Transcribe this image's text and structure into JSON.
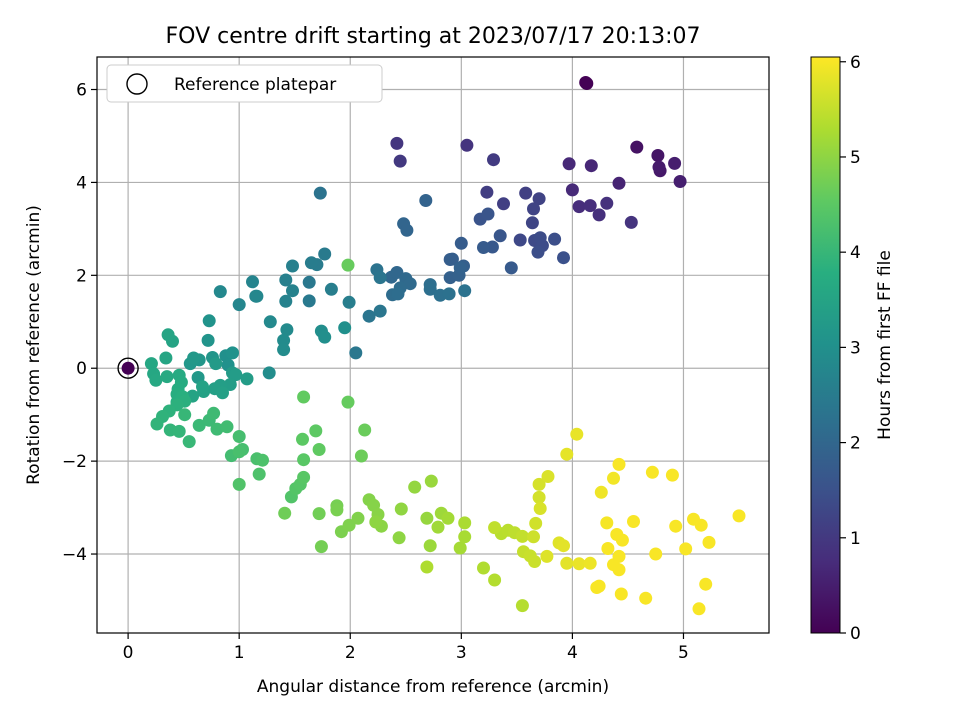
{
  "chart_data": {
    "type": "scatter",
    "title": "FOV centre drift starting at 2023/07/17 20:13:07",
    "xlabel": "Angular distance from reference (arcmin)",
    "ylabel": "Rotation from reference (arcmin)",
    "xlim": [
      -0.28,
      5.77
    ],
    "ylim": [
      -5.7,
      6.7
    ],
    "xticks": [
      0,
      1,
      2,
      3,
      4,
      5
    ],
    "yticks": [
      -4,
      -2,
      0,
      2,
      4,
      6
    ],
    "grid": true,
    "legend": {
      "position": "top-left",
      "entries": [
        "Reference platepar"
      ]
    },
    "colorbar": {
      "label": "Hours from first FF file",
      "colormap": "viridis",
      "range": [
        0,
        6.05
      ],
      "ticks": [
        0,
        1,
        2,
        3,
        4,
        5,
        6
      ]
    },
    "reference_point": {
      "x": 0,
      "y": 0
    },
    "points": [
      [
        4.13,
        6.13,
        0.0
      ],
      [
        4.12,
        6.15,
        0.02
      ],
      [
        4.58,
        4.76,
        0.3
      ],
      [
        4.77,
        4.58,
        0.35
      ],
      [
        4.79,
        4.25,
        0.4
      ],
      [
        4.78,
        4.33,
        0.45
      ],
      [
        4.92,
        4.41,
        0.5
      ],
      [
        4.97,
        4.02,
        0.52
      ],
      [
        4.42,
        3.98,
        0.6
      ],
      [
        4.17,
        4.36,
        0.65
      ],
      [
        3.97,
        4.4,
        0.68
      ],
      [
        4.0,
        3.84,
        0.7
      ],
      [
        4.06,
        3.48,
        0.75
      ],
      [
        4.16,
        3.5,
        0.78
      ],
      [
        4.24,
        3.3,
        0.82
      ],
      [
        4.31,
        3.55,
        0.85
      ],
      [
        4.53,
        3.14,
        0.9
      ],
      [
        3.05,
        4.8,
        0.9
      ],
      [
        2.42,
        4.84,
        0.95
      ],
      [
        2.45,
        4.46,
        1.0
      ],
      [
        3.29,
        4.49,
        1.05
      ],
      [
        3.23,
        3.79,
        1.1
      ],
      [
        3.38,
        3.54,
        1.12
      ],
      [
        3.58,
        3.77,
        1.15
      ],
      [
        3.7,
        3.65,
        1.2
      ],
      [
        3.65,
        3.43,
        1.22
      ],
      [
        3.64,
        3.13,
        1.25
      ],
      [
        3.53,
        2.76,
        1.3
      ],
      [
        3.66,
        2.75,
        1.35
      ],
      [
        3.71,
        2.81,
        1.38
      ],
      [
        3.73,
        2.64,
        1.4
      ],
      [
        3.69,
        2.5,
        1.43
      ],
      [
        3.84,
        2.78,
        1.45
      ],
      [
        3.92,
        2.38,
        1.5
      ],
      [
        3.17,
        3.21,
        1.55
      ],
      [
        3.24,
        3.32,
        1.58
      ],
      [
        3.35,
        2.85,
        1.6
      ],
      [
        3.28,
        2.61,
        1.65
      ],
      [
        3.45,
        2.16,
        1.7
      ],
      [
        3.2,
        2.6,
        1.72
      ],
      [
        3.0,
        2.69,
        1.75
      ],
      [
        2.9,
        2.34,
        1.78
      ],
      [
        2.92,
        2.35,
        1.8
      ],
      [
        3.02,
        2.2,
        1.82
      ],
      [
        2.9,
        1.95,
        1.85
      ],
      [
        2.98,
        2.0,
        1.87
      ],
      [
        2.99,
        2.16,
        1.9
      ],
      [
        2.68,
        3.61,
        1.92
      ],
      [
        2.48,
        3.11,
        1.95
      ],
      [
        2.51,
        2.97,
        1.97
      ],
      [
        2.37,
        1.96,
        2.0
      ],
      [
        2.42,
        2.06,
        2.02
      ],
      [
        2.5,
        1.93,
        2.05
      ],
      [
        2.54,
        1.82,
        2.07
      ],
      [
        2.45,
        1.73,
        2.1
      ],
      [
        2.38,
        1.58,
        2.12
      ],
      [
        2.43,
        1.6,
        2.15
      ],
      [
        2.72,
        1.8,
        2.17
      ],
      [
        2.72,
        1.7,
        2.2
      ],
      [
        2.81,
        1.57,
        2.22
      ],
      [
        2.89,
        1.6,
        2.25
      ],
      [
        3.03,
        1.67,
        2.27
      ],
      [
        1.73,
        3.77,
        2.3
      ],
      [
        2.24,
        2.12,
        2.3
      ],
      [
        2.27,
        1.95,
        2.33
      ],
      [
        2.17,
        1.12,
        2.35
      ],
      [
        2.27,
        1.23,
        2.37
      ],
      [
        2.05,
        0.33,
        2.4
      ],
      [
        1.63,
        1.85,
        2.42
      ],
      [
        1.63,
        1.45,
        2.45
      ],
      [
        1.77,
        2.46,
        2.47
      ],
      [
        1.7,
        2.23,
        2.5
      ],
      [
        1.65,
        2.27,
        2.52
      ],
      [
        1.83,
        1.7,
        2.55
      ],
      [
        1.99,
        1.42,
        2.57
      ],
      [
        1.48,
        2.2,
        2.6
      ],
      [
        1.42,
        1.9,
        2.62
      ],
      [
        1.48,
        1.67,
        2.65
      ],
      [
        1.42,
        1.44,
        2.67
      ],
      [
        1.15,
        1.55,
        2.7
      ],
      [
        1.12,
        1.86,
        2.72
      ],
      [
        1.0,
        1.37,
        2.75
      ],
      [
        1.16,
        1.55,
        2.77
      ],
      [
        0.83,
        1.65,
        2.8
      ],
      [
        1.28,
        1.0,
        2.82
      ],
      [
        1.43,
        0.83,
        2.85
      ],
      [
        1.4,
        0.6,
        2.87
      ],
      [
        1.4,
        0.4,
        2.9
      ],
      [
        1.27,
        -0.1,
        2.92
      ],
      [
        1.74,
        0.8,
        2.95
      ],
      [
        1.77,
        0.67,
        2.97
      ],
      [
        1.95,
        0.87,
        3.0
      ],
      [
        0.88,
        0.27,
        3.0
      ],
      [
        0.9,
        0.07,
        3.02
      ],
      [
        0.94,
        0.33,
        3.05
      ],
      [
        0.73,
        1.02,
        3.07
      ],
      [
        0.72,
        0.6,
        3.1
      ],
      [
        0.76,
        0.23,
        3.12
      ],
      [
        0.64,
        0.18,
        3.15
      ],
      [
        0.56,
        0.1,
        3.17
      ],
      [
        0.59,
        0.22,
        3.2
      ],
      [
        0.63,
        -0.2,
        3.22
      ],
      [
        0.79,
        0.1,
        3.25
      ],
      [
        0.94,
        -0.1,
        3.27
      ],
      [
        0.97,
        -0.14,
        3.3
      ],
      [
        1.07,
        -0.23,
        3.32
      ],
      [
        0.92,
        -0.35,
        3.35
      ],
      [
        0.83,
        -0.37,
        3.37
      ],
      [
        0.78,
        -0.44,
        3.4
      ],
      [
        0.85,
        -0.53,
        3.42
      ],
      [
        0.68,
        -0.5,
        3.45
      ],
      [
        0.67,
        -0.4,
        3.47
      ],
      [
        0.58,
        -0.6,
        3.5
      ],
      [
        0.4,
        0.58,
        3.5
      ],
      [
        0.36,
        0.72,
        3.52
      ],
      [
        0.34,
        0.22,
        3.55
      ],
      [
        0.21,
        0.1,
        3.57
      ],
      [
        0.23,
        -0.12,
        3.6
      ],
      [
        0.25,
        -0.26,
        3.62
      ],
      [
        0.35,
        -0.18,
        3.65
      ],
      [
        0.46,
        -0.15,
        3.67
      ],
      [
        0.48,
        -0.3,
        3.7
      ],
      [
        0.45,
        -0.45,
        3.72
      ],
      [
        0.44,
        -0.56,
        3.75
      ],
      [
        0.44,
        -0.73,
        3.77
      ],
      [
        0.49,
        -0.61,
        3.8
      ],
      [
        0.51,
        -0.71,
        3.82
      ],
      [
        0.44,
        -0.79,
        3.85
      ],
      [
        0.37,
        -0.92,
        3.87
      ],
      [
        0.31,
        -1.04,
        3.9
      ],
      [
        0.26,
        -1.2,
        3.92
      ],
      [
        0.38,
        -1.33,
        3.95
      ],
      [
        0.46,
        -1.36,
        3.97
      ],
      [
        0.51,
        -1.0,
        4.0
      ],
      [
        0.55,
        -1.58,
        4.02
      ],
      [
        0.64,
        -1.23,
        4.05
      ],
      [
        0.73,
        -1.12,
        4.07
      ],
      [
        0.77,
        -0.97,
        4.1
      ],
      [
        0.8,
        -1.31,
        4.12
      ],
      [
        0.89,
        -1.26,
        4.15
      ],
      [
        0.93,
        -1.88,
        4.17
      ],
      [
        1.0,
        -1.47,
        4.2
      ],
      [
        1.03,
        -1.75,
        4.22
      ],
      [
        1.0,
        -1.8,
        4.25
      ],
      [
        1.16,
        -1.95,
        4.27
      ],
      [
        1.21,
        -1.98,
        4.3
      ],
      [
        1.18,
        -2.28,
        4.32
      ],
      [
        1.0,
        -2.5,
        4.35
      ],
      [
        1.47,
        -2.77,
        4.37
      ],
      [
        1.51,
        -2.59,
        4.4
      ],
      [
        1.55,
        -2.5,
        4.42
      ],
      [
        1.58,
        -2.35,
        4.45
      ],
      [
        1.58,
        -1.97,
        4.47
      ],
      [
        1.57,
        -1.53,
        4.5
      ],
      [
        1.69,
        -1.35,
        4.52
      ],
      [
        1.72,
        -1.75,
        4.55
      ],
      [
        1.58,
        -0.62,
        4.57
      ],
      [
        1.98,
        -0.73,
        4.6
      ],
      [
        1.98,
        2.22,
        4.62
      ],
      [
        2.13,
        -1.33,
        4.65
      ],
      [
        2.1,
        -1.89,
        4.67
      ],
      [
        1.41,
        -3.12,
        4.7
      ],
      [
        1.72,
        -3.13,
        4.72
      ],
      [
        1.74,
        -3.84,
        4.75
      ],
      [
        1.88,
        -2.96,
        4.77
      ],
      [
        1.88,
        -3.05,
        4.8
      ],
      [
        1.92,
        -3.52,
        4.82
      ],
      [
        1.99,
        -3.38,
        4.85
      ],
      [
        2.07,
        -3.23,
        4.87
      ],
      [
        2.17,
        -2.83,
        4.9
      ],
      [
        2.21,
        -2.95,
        4.92
      ],
      [
        2.25,
        -3.15,
        4.95
      ],
      [
        2.28,
        -3.4,
        4.97
      ],
      [
        2.23,
        -3.31,
        5.0
      ],
      [
        2.44,
        -3.65,
        5.0
      ],
      [
        2.46,
        -3.03,
        5.02
      ],
      [
        2.58,
        -2.56,
        5.05
      ],
      [
        2.69,
        -3.23,
        5.07
      ],
      [
        2.73,
        -2.43,
        5.1
      ],
      [
        2.72,
        -3.82,
        5.12
      ],
      [
        2.82,
        -3.12,
        5.15
      ],
      [
        2.79,
        -3.42,
        5.17
      ],
      [
        2.88,
        -3.23,
        5.2
      ],
      [
        2.99,
        -3.87,
        5.22
      ],
      [
        3.03,
        -3.63,
        5.25
      ],
      [
        3.03,
        -3.33,
        5.27
      ],
      [
        2.69,
        -4.28,
        5.3
      ],
      [
        3.2,
        -4.3,
        5.32
      ],
      [
        3.3,
        -4.56,
        5.35
      ],
      [
        3.55,
        -5.11,
        5.37
      ],
      [
        3.36,
        -3.56,
        5.4
      ],
      [
        3.42,
        -3.49,
        5.42
      ],
      [
        3.48,
        -3.54,
        5.45
      ],
      [
        3.3,
        -3.43,
        5.47
      ],
      [
        3.55,
        -3.62,
        5.5
      ],
      [
        3.56,
        -3.95,
        5.52
      ],
      [
        3.62,
        -4.04,
        5.55
      ],
      [
        3.66,
        -4.16,
        5.57
      ],
      [
        3.65,
        -3.63,
        5.6
      ],
      [
        3.67,
        -3.34,
        5.62
      ],
      [
        3.7,
        -2.78,
        5.65
      ],
      [
        3.7,
        -2.5,
        5.67
      ],
      [
        3.71,
        -3.02,
        5.7
      ],
      [
        3.78,
        -2.33,
        5.72
      ],
      [
        3.77,
        -4.05,
        5.75
      ],
      [
        3.88,
        -3.76,
        5.77
      ],
      [
        3.92,
        -3.82,
        5.8
      ],
      [
        3.95,
        -4.2,
        5.8
      ],
      [
        3.95,
        -1.85,
        5.82
      ],
      [
        4.04,
        -1.42,
        5.85
      ],
      [
        4.06,
        -4.21,
        5.87
      ],
      [
        4.16,
        -4.2,
        5.9
      ],
      [
        4.26,
        -2.67,
        5.92
      ],
      [
        4.37,
        -2.37,
        5.95
      ],
      [
        4.31,
        -3.33,
        5.97
      ],
      [
        4.4,
        -3.58,
        6.0
      ],
      [
        4.37,
        -4.23,
        6.0
      ],
      [
        4.42,
        -4.05,
        6.0
      ],
      [
        4.45,
        -3.7,
        6.0
      ],
      [
        4.42,
        -4.34,
        6.0
      ],
      [
        4.44,
        -4.86,
        6.0
      ],
      [
        4.55,
        -3.3,
        6.0
      ],
      [
        4.24,
        -4.69,
        6.0
      ],
      [
        4.22,
        -4.72,
        6.0
      ],
      [
        4.66,
        -4.95,
        6.0
      ],
      [
        4.72,
        -2.24,
        6.0
      ],
      [
        4.9,
        -2.3,
        6.0
      ],
      [
        4.93,
        -3.4,
        6.0
      ],
      [
        5.02,
        -3.89,
        6.0
      ],
      [
        5.09,
        -3.25,
        6.0
      ],
      [
        5.16,
        -3.38,
        6.0
      ],
      [
        5.2,
        -4.65,
        6.0
      ],
      [
        5.14,
        -5.18,
        6.0
      ],
      [
        5.23,
        -3.75,
        6.0
      ],
      [
        5.5,
        -3.18,
        6.0
      ],
      [
        4.75,
        -4.0,
        6.0
      ],
      [
        4.42,
        -2.07,
        6.0
      ],
      [
        4.32,
        -3.88,
        6.0
      ],
      [
        0.0,
        0.0,
        0.0
      ]
    ]
  }
}
